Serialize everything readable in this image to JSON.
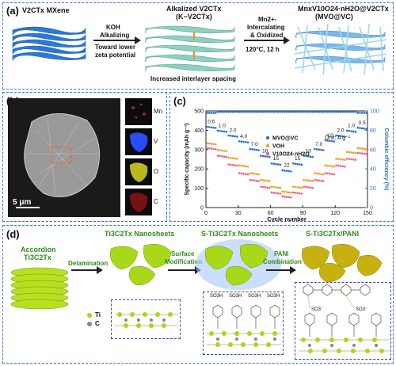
{
  "panel_a": {
    "label": "(a)",
    "mxene_label": "V2CTx MXene",
    "step1_line1": "KOH",
    "step1_line2": "Alkalizing",
    "step1_line3": "Toward lower",
    "step1_line4": "zeta potential",
    "alk_line1": "Alkalized V2CTx",
    "alk_line2": "(K−V2CTx)",
    "alk_note": "Increased  interlayer spacing",
    "step2_line1": "Mn2+-",
    "step2_line2": "Intercalating",
    "step2_line3": "& Oxidized",
    "step2_line4": "120°C, 12 h",
    "prod_line1": "MnxV10O24·nH2O@V2CTx",
    "prod_line2": "(MVO@VC)"
  },
  "panel_b": {
    "label": "(b)",
    "maps": [
      "Mn",
      "V",
      "O",
      "C"
    ],
    "scale": "5 μm",
    "colors": {
      "Mn": "#c0307a",
      "V": "#2a4cff",
      "O": "#d8d820",
      "C": "#c01818"
    }
  },
  "panel_c": {
    "label": "(c)",
    "unit": "Unit: A g⁻¹",
    "rate_labels": [
      "0.5",
      "1.0",
      "2.0",
      "4.0",
      "7.0",
      "10",
      "15",
      "22",
      "15",
      "10",
      "7.0",
      "4.0",
      "2.0",
      "1.0",
      "0.5"
    ]
  },
  "chart_data": {
    "type": "scatter",
    "xlabel": "Cycle number",
    "ylabel": "Specific capacity (mAh g⁻¹)",
    "y2label": "Columbic efficiency (%)",
    "xlim": [
      0,
      150
    ],
    "ylim": [
      0,
      500
    ],
    "y2lim": [
      0,
      100
    ],
    "xticks": [
      0,
      30,
      60,
      90,
      120,
      150
    ],
    "yticks": [
      0,
      100,
      200,
      300,
      400,
      500
    ],
    "y2ticks": [
      0,
      20,
      40,
      60,
      80,
      100
    ],
    "legend_position": "center",
    "series": [
      {
        "name": "MVO@VC",
        "color": "#2a6fd0",
        "x": [
          5,
          15,
          25,
          35,
          45,
          55,
          65,
          75,
          85,
          95,
          105,
          115,
          125,
          135,
          145
        ],
        "values": [
          415,
          395,
          370,
          340,
          300,
          265,
          225,
          190,
          225,
          265,
          300,
          345,
          370,
          395,
          410
        ]
      },
      {
        "name": "VOH",
        "color": "#f0a020",
        "x": [
          5,
          15,
          25,
          35,
          45,
          55,
          65,
          75,
          85,
          95,
          105,
          115,
          125,
          135,
          145
        ],
        "values": [
          330,
          295,
          255,
          215,
          175,
          140,
          105,
          80,
          105,
          140,
          175,
          215,
          250,
          285,
          305
        ]
      },
      {
        "name": "V10O24·nH2O",
        "color": "#f06090",
        "x": [
          5,
          15,
          25,
          35,
          45,
          55,
          65,
          75,
          85,
          95,
          105,
          115,
          125,
          135,
          145
        ],
        "values": [
          305,
          265,
          220,
          175,
          140,
          105,
          75,
          55,
          75,
          105,
          140,
          175,
          215,
          250,
          280
        ]
      },
      {
        "name": "",
        "axis": "y2",
        "color": "#2a6fd0",
        "x": [
          5,
          15,
          25,
          35,
          45,
          55,
          65,
          75,
          85,
          95,
          105,
          115,
          125,
          135,
          145
        ],
        "values": [
          98,
          99,
          99,
          99,
          99,
          99,
          99,
          99,
          99,
          99,
          99,
          99,
          99,
          99,
          98
        ]
      }
    ]
  },
  "panel_d": {
    "label": "(d)",
    "accordion_line1": "Accordion",
    "accordion_line2": "Ti3C2Tx",
    "delam": "Delamination",
    "nano": "Ti3C2Tx Nanosheets",
    "surf_line1": "Surface",
    "surf_line2": "Modification",
    "snano": "S-Ti3C2Tx Nanosheets",
    "pani_line1": "PANI",
    "pani_line2": "Combination",
    "spani": "S-Ti3C2Tx/PANI",
    "legend_ti": "Ti",
    "legend_c": "C",
    "so3h": "SO3H",
    "so3": "SO3⁻"
  }
}
